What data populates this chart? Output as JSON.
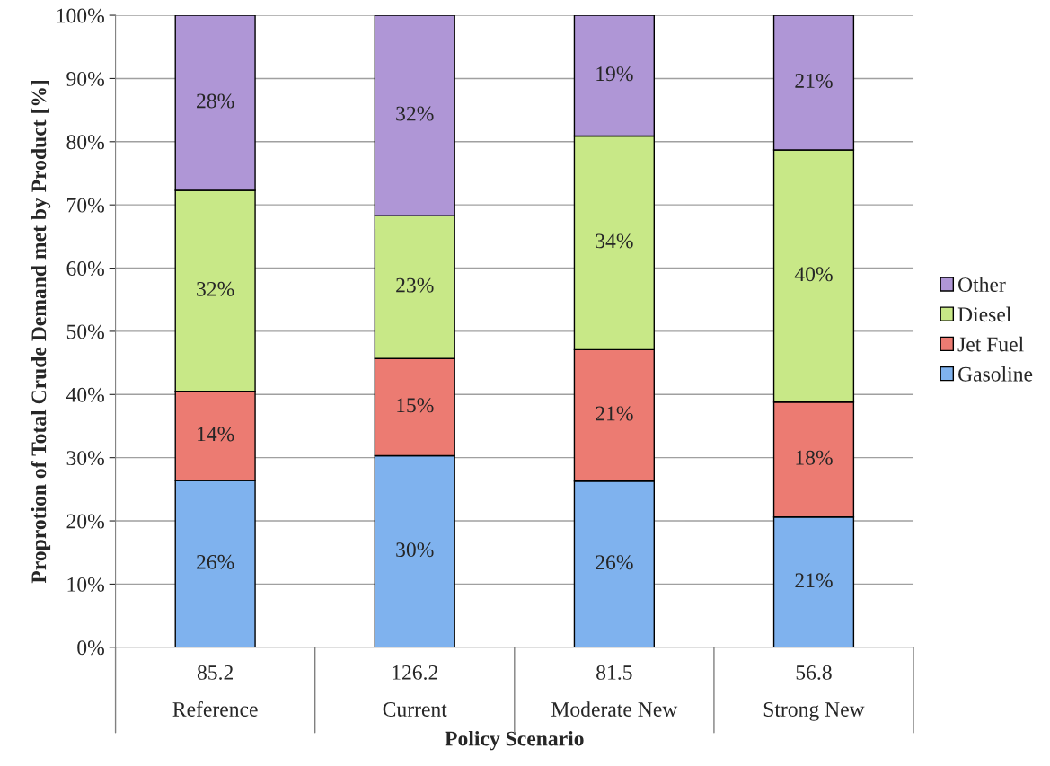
{
  "chart_data": {
    "type": "bar",
    "stacked": true,
    "xlabel": "Policy Scenario",
    "ylabel": "Proprotion of Total Crude Demand met by Product [%]",
    "categories": [
      "85.2\nReference",
      "126.2\nCurrent",
      "81.5\nModerate New",
      "56.8\nStrong New"
    ],
    "ylim": [
      0,
      100
    ],
    "yticks": [
      {
        "value": 0,
        "label": "0%"
      },
      {
        "value": 10,
        "label": "10%"
      },
      {
        "value": 20,
        "label": "20%"
      },
      {
        "value": 30,
        "label": "30%"
      },
      {
        "value": 40,
        "label": "40%"
      },
      {
        "value": 50,
        "label": "50%"
      },
      {
        "value": 60,
        "label": "60%"
      },
      {
        "value": 70,
        "label": "70%"
      },
      {
        "value": 80,
        "label": "80%"
      },
      {
        "value": 90,
        "label": "90%"
      },
      {
        "value": 100,
        "label": "100%"
      }
    ],
    "grid": "y",
    "legend": "right",
    "series": [
      {
        "name": "Gasoline",
        "color": "#7fb2ee",
        "values": [
          26.4,
          30.3,
          26.3,
          20.6
        ],
        "value_labels": [
          "26%",
          "30%",
          "26%",
          "21%"
        ]
      },
      {
        "name": "Jet Fuel",
        "color": "#ec7b72",
        "values": [
          14.1,
          15.4,
          20.8,
          18.2
        ],
        "value_labels": [
          "14%",
          "15%",
          "21%",
          "18%"
        ]
      },
      {
        "name": "Diesel",
        "color": "#c8e887",
        "values": [
          31.8,
          22.6,
          33.8,
          39.9
        ],
        "value_labels": [
          "32%",
          "23%",
          "34%",
          "40%"
        ]
      },
      {
        "name": "Other",
        "color": "#af96d6",
        "values": [
          27.7,
          31.7,
          19.1,
          21.3
        ],
        "value_labels": [
          "28%",
          "32%",
          "19%",
          "21%"
        ]
      }
    ]
  }
}
